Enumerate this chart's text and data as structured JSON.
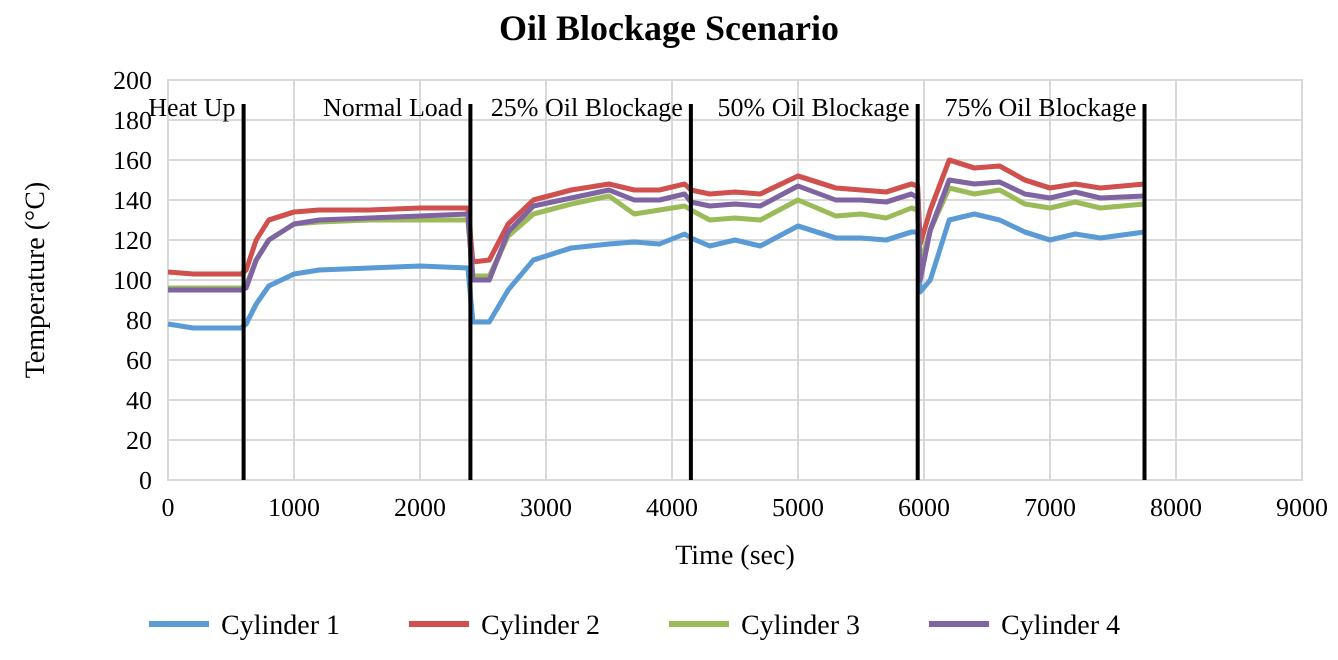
{
  "chart_data": {
    "type": "line",
    "title": "Oil Blockage Scenario",
    "xlabel": "Time (sec)",
    "ylabel": "Temperature (°C)",
    "x": [
      0,
      200,
      580,
      620,
      700,
      800,
      1000,
      1200,
      1600,
      2000,
      2380,
      2420,
      2550,
      2700,
      2900,
      3200,
      3500,
      3700,
      3900,
      4100,
      4150,
      4300,
      4500,
      4700,
      5000,
      5300,
      5500,
      5700,
      5900,
      5950,
      5970,
      6050,
      6200,
      6400,
      6600,
      6800,
      7000,
      7200,
      7400,
      7750
    ],
    "series": [
      {
        "name": "Cylinder 1",
        "color": "#5b9bd5",
        "values": [
          78,
          76,
          76,
          78,
          88,
          97,
          103,
          105,
          106,
          107,
          106,
          79,
          79,
          95,
          110,
          116,
          118,
          119,
          118,
          123,
          121,
          117,
          120,
          117,
          127,
          121,
          121,
          120,
          124,
          124,
          94,
          100,
          130,
          133,
          130,
          124,
          120,
          123,
          121,
          124
        ]
      },
      {
        "name": "Cylinder 2",
        "color": "#d0504d",
        "values": [
          104,
          103,
          103,
          105,
          120,
          130,
          134,
          135,
          135,
          136,
          136,
          109,
          110,
          128,
          140,
          145,
          148,
          145,
          145,
          148,
          145,
          143,
          144,
          143,
          152,
          146,
          145,
          144,
          148,
          147,
          118,
          135,
          160,
          156,
          157,
          150,
          146,
          148,
          146,
          148
        ]
      },
      {
        "name": "Cylinder 3",
        "color": "#9bbb59",
        "values": [
          96,
          96,
          96,
          97,
          110,
          120,
          128,
          129,
          130,
          130,
          130,
          102,
          102,
          122,
          133,
          138,
          142,
          133,
          135,
          137,
          135,
          130,
          131,
          130,
          140,
          132,
          133,
          131,
          136,
          135,
          108,
          125,
          146,
          143,
          145,
          138,
          136,
          139,
          136,
          138
        ]
      },
      {
        "name": "Cylinder 4",
        "color": "#8064a2",
        "values": [
          95,
          95,
          95,
          96,
          110,
          120,
          128,
          130,
          131,
          132,
          133,
          100,
          100,
          124,
          137,
          141,
          145,
          140,
          140,
          143,
          139,
          137,
          138,
          137,
          147,
          140,
          140,
          139,
          143,
          141,
          100,
          125,
          150,
          148,
          149,
          143,
          141,
          144,
          141,
          142
        ]
      }
    ],
    "xlim": [
      0,
      9000
    ],
    "xticks": [
      0,
      1000,
      2000,
      3000,
      4000,
      5000,
      6000,
      7000,
      8000,
      9000
    ],
    "ylim": [
      0,
      200
    ],
    "yticks": [
      0,
      20,
      40,
      60,
      80,
      100,
      120,
      140,
      160,
      180,
      200
    ],
    "ref_lines": [
      {
        "axis": "x",
        "value": 600,
        "label": "Heat Up",
        "color": "#000000"
      },
      {
        "axis": "x",
        "value": 2400,
        "label": "Normal Load",
        "color": "#000000"
      },
      {
        "axis": "x",
        "value": 4150,
        "label": "25% Oil Blockage",
        "color": "#000000"
      },
      {
        "axis": "x",
        "value": 5950,
        "label": "50% Oil Blockage",
        "color": "#000000"
      },
      {
        "axis": "x",
        "value": 7750,
        "label": "75% Oil Blockage",
        "color": "#000000"
      }
    ],
    "grid": true,
    "legend": "bottom",
    "marker": "none",
    "line_style": "solid"
  }
}
